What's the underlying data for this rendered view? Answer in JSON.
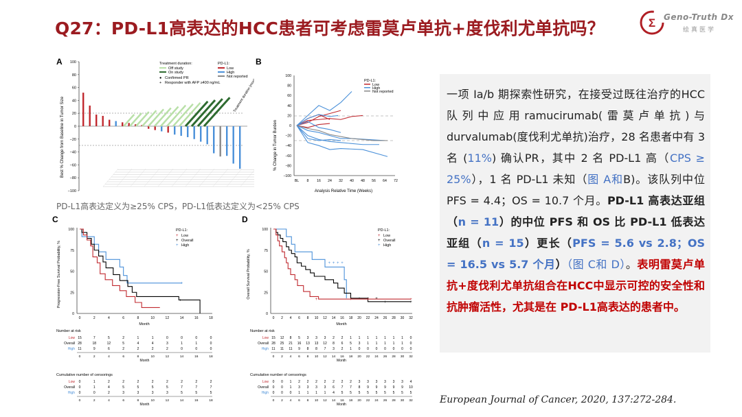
{
  "title": "Q27：PD-L1高表达的HCC患者可考虑雷莫卢单抗+度伐利尤单抗吗？",
  "logo": {
    "en": "Geno-Truth Dx",
    "cn": "绘真医学",
    "mark": "Σ"
  },
  "caption": "PD-L1高表达定义为≥25% CPS，PD-L1低表达定义为<25% CPS",
  "panels": {
    "A": {
      "label": "A",
      "ylabel": "Best % Change from Baseline in Tumor Size",
      "zlabel": "Treatment duration (mos)",
      "yticks": [
        "100",
        "80",
        "60",
        "40",
        "20",
        "0",
        "−20",
        "−40",
        "−60",
        "−80",
        "−100"
      ],
      "legend_duration_title": "Treatment duration:",
      "legend_duration": [
        "Off study",
        "On study"
      ],
      "legend_marks": [
        "Confirmed PR",
        "Responder with AFP ≥400 ng/mL"
      ],
      "legend_pdl1_title": "PD-L1:",
      "legend_pdl1": [
        "Low",
        "High",
        "Not reported"
      ]
    },
    "B": {
      "label": "B",
      "ylabel": "% Change in Tumor Burden",
      "xlabel": "Analysis Relative Time (Weeks)",
      "yticks": [
        "100",
        "80",
        "60",
        "40",
        "20",
        "0",
        "−20",
        "−40",
        "−60",
        "−80",
        "−100"
      ],
      "xticks": [
        "BL",
        "8",
        "16",
        "24",
        "32",
        "40",
        "48",
        "56",
        "64",
        "72"
      ],
      "legend_title": "PD-L1:",
      "legend": [
        "Low",
        "High",
        "Not reported"
      ]
    },
    "C": {
      "label": "C",
      "ylabel": "Progression-Free Survival Probability, %",
      "xlabel": "Month",
      "yticks": [
        "100",
        "75",
        "50",
        "25",
        "0"
      ],
      "xticks": [
        "0",
        "2",
        "4",
        "6",
        "8",
        "10",
        "12",
        "14",
        "16",
        "18"
      ],
      "legend_title": "PD-L1:",
      "legend": [
        "Low",
        "Overall",
        "High"
      ],
      "risk_title": "Number at risk",
      "risk_rows": [
        {
          "label": "Low",
          "values": [
            "15",
            "7",
            "5",
            "2",
            "1",
            "1",
            "0",
            "0",
            "0",
            "0"
          ]
        },
        {
          "label": "Overall",
          "values": [
            "28",
            "18",
            "12",
            "5",
            "4",
            "4",
            "3",
            "1",
            "1",
            "0"
          ]
        },
        {
          "label": "High",
          "values": [
            "11",
            "9",
            "6",
            "2",
            "2",
            "2",
            "2",
            "0",
            "0",
            "0"
          ]
        }
      ],
      "cens_title": "Cumulative number of censorings",
      "cens_rows": [
        {
          "label": "Low",
          "values": [
            "0",
            "1",
            "2",
            "2",
            "2",
            "2",
            "2",
            "2",
            "2",
            "2"
          ]
        },
        {
          "label": "Overall",
          "values": [
            "0",
            "1",
            "4",
            "5",
            "5",
            "5",
            "5",
            "7",
            "7",
            "7"
          ]
        },
        {
          "label": "High",
          "values": [
            "0",
            "0",
            "2",
            "3",
            "3",
            "3",
            "3",
            "5",
            "5",
            "5"
          ]
        }
      ]
    },
    "D": {
      "label": "D",
      "ylabel": "Overall Survival Probability, %",
      "xlabel": "Month",
      "yticks": [
        "100",
        "75",
        "50",
        "25",
        "0"
      ],
      "xticks": [
        "0",
        "2",
        "4",
        "6",
        "8",
        "10",
        "12",
        "14",
        "16",
        "18",
        "20",
        "22",
        "24",
        "26",
        "28",
        "30",
        "32"
      ],
      "legend_title": "PD-L1:",
      "legend": [
        "Low",
        "Overall",
        "High"
      ],
      "risk_title": "Number at risk",
      "risk_rows": [
        {
          "label": "Low",
          "values": [
            "15",
            "12",
            "8",
            "5",
            "3",
            "3",
            "3",
            "2",
            "2",
            "1",
            "1",
            "1",
            "1",
            "1",
            "1",
            "1",
            "0"
          ]
        },
        {
          "label": "Overall",
          "values": [
            "28",
            "25",
            "21",
            "16",
            "13",
            "13",
            "12",
            "8",
            "6",
            "5",
            "3",
            "1",
            "1",
            "1",
            "1",
            "1",
            "0"
          ]
        },
        {
          "label": "High",
          "values": [
            "11",
            "11",
            "11",
            "9",
            "8",
            "8",
            "7",
            "3",
            "2",
            "1",
            "0",
            "0",
            "0",
            "0",
            "0",
            "0",
            "0"
          ]
        }
      ],
      "cens_title": "Cumulative number of censorings",
      "cens_rows": [
        {
          "label": "Low",
          "values": [
            "0",
            "0",
            "1",
            "2",
            "2",
            "2",
            "2",
            "2",
            "2",
            "2",
            "3",
            "3",
            "3",
            "3",
            "3",
            "3",
            "4"
          ]
        },
        {
          "label": "Overall",
          "values": [
            "0",
            "0",
            "1",
            "3",
            "3",
            "3",
            "3",
            "6",
            "7",
            "7",
            "8",
            "9",
            "9",
            "9",
            "9",
            "9",
            "10"
          ]
        },
        {
          "label": "High",
          "values": [
            "0",
            "0",
            "0",
            "1",
            "1",
            "1",
            "1",
            "4",
            "5",
            "5",
            "5",
            "5",
            "5",
            "5",
            "5",
            "5",
            "5"
          ]
        }
      ]
    }
  },
  "text": {
    "t1": "一项 Ia/b 期探索性研究，在接受过既往治疗的HCC 队列中应用ramucirumab(雷莫卢单抗)与durvalumab(度伐利尤单抗)治疗，28 名患者中有 3 名 (",
    "t1_hl": "11%",
    "t2": ") 确认PR，其中 2 名 PD-L1 高（",
    "t2_hl": "CPS ≥ 25%",
    "t3": "），1 名 PD-L1 未知（",
    "t3_hl": "图 A和",
    "t4": "B)。该队列中位 PFS = 4.4；OS = 10.7 个月。",
    "bold1": "PD-L1 高表达亚组（",
    "bold1_hl": "n = 11",
    "bold2": "）的中位 PFS 和 OS 比 PD-L1 低表达亚组（",
    "bold2_hl": "n = 15",
    "bold3": "）更长（",
    "bold3_hl": "PFS = 5.6 vs 2.8；OS = 16.5 vs 5.7 个月",
    "bold4": "）",
    "t5_hl": "（图 C和 D）",
    "t5": "。",
    "red": "表明雷莫卢单抗+度伐利尤单抗组合在HCC中显示可控的安全性和抗肿瘤活性，尤其是在 PD-L1高表达的患者中。"
  },
  "reference": "European Journal of Cancer, 2020, 137:272-284.",
  "colors": {
    "title": "#9b1b20",
    "low": "#c0282e",
    "high": "#4a90d9",
    "overall": "#000000",
    "not_reported": "#888888",
    "offstudy": "#b9e0a8",
    "onstudy": "#2e6b30"
  }
}
